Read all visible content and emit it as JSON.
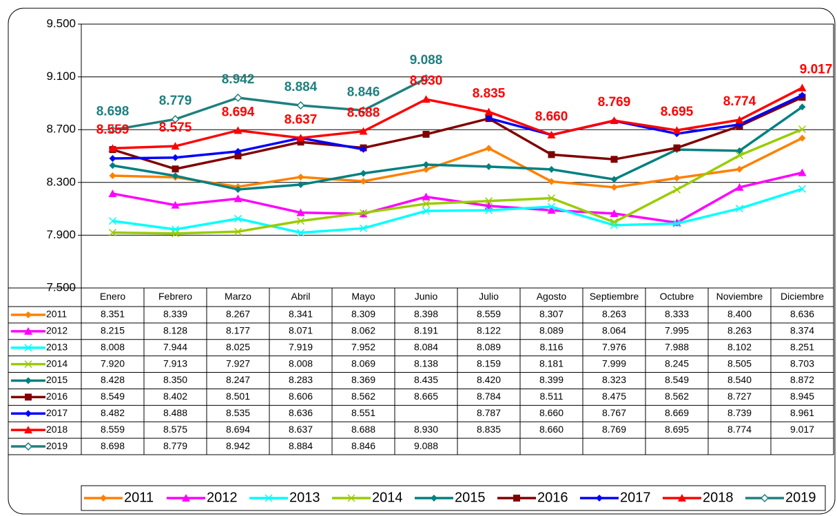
{
  "chart_data": {
    "type": "line",
    "categories": [
      "Enero",
      "Febrero",
      "Marzo",
      "Abril",
      "Mayo",
      "Junio",
      "Julio",
      "Agosto",
      "Septiembre",
      "Octubre",
      "Noviembre",
      "Diciembre"
    ],
    "ylim": [
      7500,
      9500
    ],
    "yticks": [
      {
        "value": 7500,
        "label": "7.500"
      },
      {
        "value": 7900,
        "label": "7.900"
      },
      {
        "value": 8300,
        "label": "8.300"
      },
      {
        "value": 8700,
        "label": "8.700"
      },
      {
        "value": 9100,
        "label": "9.100"
      },
      {
        "value": 9500,
        "label": "9.500"
      }
    ],
    "grid": true,
    "series": [
      {
        "name": "2011",
        "color": "#ff8000",
        "marker": "diamond",
        "values": [
          8351,
          8339,
          8267,
          8341,
          8309,
          8398,
          8559,
          8307,
          8263,
          8333,
          8400,
          8636
        ],
        "value_labels": [
          "8.351",
          "8.339",
          "8.267",
          "8.341",
          "8.309",
          "8.398",
          "8.559",
          "8.307",
          "8.263",
          "8.333",
          "8.400",
          "8.636"
        ]
      },
      {
        "name": "2012",
        "color": "#ff00ff",
        "marker": "triangle",
        "values": [
          8215,
          8128,
          8177,
          8071,
          8062,
          8191,
          8122,
          8089,
          8064,
          7995,
          8263,
          8374
        ],
        "value_labels": [
          "8.215",
          "8.128",
          "8.177",
          "8.071",
          "8.062",
          "8.191",
          "8.122",
          "8.089",
          "8.064",
          "7.995",
          "8.263",
          "8.374"
        ]
      },
      {
        "name": "2013",
        "color": "#00ffff",
        "marker": "x",
        "values": [
          8008,
          7944,
          8025,
          7919,
          7952,
          8084,
          8089,
          8116,
          7976,
          7988,
          8102,
          8251
        ],
        "value_labels": [
          "8.008",
          "7.944",
          "8.025",
          "7.919",
          "7.952",
          "8.084",
          "8.089",
          "8.116",
          "7.976",
          "7.988",
          "8.102",
          "8.251"
        ]
      },
      {
        "name": "2014",
        "color": "#99cc00",
        "marker": "x",
        "values": [
          7920,
          7913,
          7927,
          8008,
          8069,
          8138,
          8159,
          8181,
          7999,
          8245,
          8505,
          8703
        ],
        "value_labels": [
          "7.920",
          "7.913",
          "7.927",
          "8.008",
          "8.069",
          "8.138",
          "8.159",
          "8.181",
          "7.999",
          "8.245",
          "8.505",
          "8.703"
        ]
      },
      {
        "name": "2015",
        "color": "#008080",
        "marker": "diamond",
        "values": [
          8428,
          8350,
          8247,
          8283,
          8369,
          8435,
          8420,
          8399,
          8323,
          8549,
          8540,
          8872
        ],
        "value_labels": [
          "8.428",
          "8.350",
          "8.247",
          "8.283",
          "8.369",
          "8.435",
          "8.420",
          "8.399",
          "8.323",
          "8.549",
          "8.540",
          "8.872"
        ]
      },
      {
        "name": "2016",
        "color": "#800000",
        "marker": "square",
        "values": [
          8549,
          8402,
          8501,
          8606,
          8562,
          8665,
          8784,
          8511,
          8475,
          8562,
          8727,
          8945
        ],
        "value_labels": [
          "8.549",
          "8.402",
          "8.501",
          "8.606",
          "8.562",
          "8.665",
          "8.784",
          "8.511",
          "8.475",
          "8.562",
          "8.727",
          "8.945"
        ]
      },
      {
        "name": "2017",
        "color": "#0000ff",
        "marker": "diamond",
        "values": [
          8482,
          8488,
          8535,
          8636,
          8551,
          null,
          8787,
          8660,
          8767,
          8669,
          8739,
          8961
        ],
        "value_labels": [
          "8.482",
          "8.488",
          "8.535",
          "8.636",
          "8.551",
          null,
          "8.787",
          "8.660",
          "8.767",
          "8.669",
          "8.739",
          "8.961"
        ]
      },
      {
        "name": "2018",
        "color": "#ff0000",
        "marker": "triangle",
        "show_labels": true,
        "values": [
          8559,
          8575,
          8694,
          8637,
          8688,
          8930,
          8835,
          8660,
          8769,
          8695,
          8774,
          9017
        ],
        "value_labels": [
          "8.559",
          "8.575",
          "8.694",
          "8.637",
          "8.688",
          "8.930",
          "8.835",
          "8.660",
          "8.769",
          "8.695",
          "8.774",
          "9.017"
        ]
      },
      {
        "name": "2019",
        "color": "#1f7f7f",
        "marker": "hollow-diamond",
        "show_labels": true,
        "values": [
          8698,
          8779,
          8942,
          8884,
          8846,
          9088,
          null,
          null,
          null,
          null,
          null,
          null
        ],
        "value_labels": [
          "8.698",
          "8.779",
          "8.942",
          "8.884",
          "8.846",
          "9.088",
          null,
          null,
          null,
          null,
          null,
          null
        ]
      }
    ]
  }
}
